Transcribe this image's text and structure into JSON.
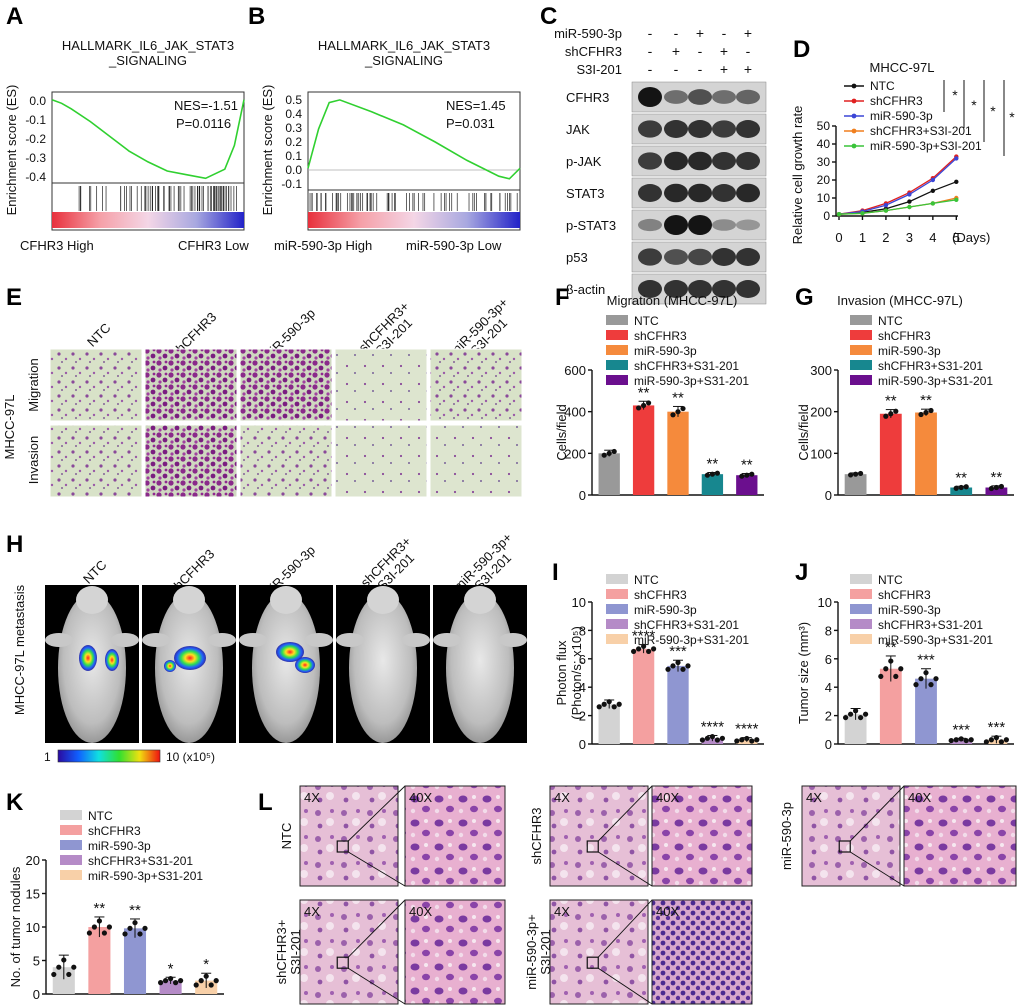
{
  "figure": {
    "panel_labels": [
      "A",
      "B",
      "C",
      "D",
      "E",
      "F",
      "G",
      "H",
      "I",
      "J",
      "K",
      "L"
    ]
  },
  "gsea": {
    "ylabel": "Enrichment score (ES)",
    "panels": [
      {
        "title1": "HALLMARK_IL6_JAK_STAT3",
        "title2": "_SIGNALING",
        "nes": "NES=-1.51",
        "p": "P=0.0116",
        "ticks": [
          "0.0",
          "-0.1",
          "-0.2",
          "-0.3",
          "-0.4"
        ],
        "left": "CFHR3 High",
        "right": "CFHR3 Low"
      },
      {
        "title1": "HALLMARK_IL6_JAK_STAT3",
        "title2": "_SIGNALING",
        "nes": "NES=1.45",
        "p": "P=0.031",
        "ticks": [
          "0.5",
          "0.4",
          "0.3",
          "0.2",
          "0.1",
          "0.0",
          "-0.1"
        ],
        "left": "miR-590-3p High",
        "right": "miR-590-3p Low"
      }
    ]
  },
  "western": {
    "header_rows": [
      {
        "name": "miR-590-3p",
        "marks": [
          "-",
          "-",
          "+",
          "-",
          "+"
        ]
      },
      {
        "name": "shCFHR3",
        "marks": [
          "-",
          "+",
          "-",
          "+",
          "-"
        ]
      },
      {
        "name": "S3I-201",
        "marks": [
          "-",
          "-",
          "-",
          "+",
          "+"
        ]
      }
    ],
    "proteins": [
      "CFHR3",
      "JAK",
      "p-JAK",
      "STAT3",
      "p-STAT3",
      "p53",
      "β-actin"
    ]
  },
  "growth": {
    "title": "MHCC-97L",
    "ylabel": "Relative cell growth rate",
    "xlabel": "(Days)",
    "sig": [
      "*",
      "*",
      "*",
      "*"
    ],
    "legend": [
      "NTC",
      "shCFHR3",
      "miR-590-3p",
      "shCFHR3+S3I-201",
      "miR-590-3p+S3I-201"
    ]
  },
  "transwell": {
    "columns": [
      "NTC",
      "shCFHR3",
      "miR-590-3p",
      "shCFHR3+\nS3I-201",
      "miR-590-3p+\nS3I-201"
    ],
    "cell_line": "MHCC-97L",
    "rows": [
      "Migration",
      "Invasion"
    ]
  },
  "metastasis": {
    "columns": [
      "NTC",
      "shCFHR3",
      "miR-590-3p",
      "shCFHR3+\nS3I-201",
      "miR-590-3p+\nS3I-201"
    ],
    "side_label": "MHCC-97L metastasis",
    "scale_min": "1",
    "scale_max": "10 (x10⁵)"
  },
  "he": {
    "mag_low": "4X",
    "mag_high": "40X",
    "labels": [
      "NTC",
      "shCFHR3",
      "miR-590-3p",
      "shCFHR3+\nS3I-201",
      "miR-590-3p+\nS3I-201"
    ]
  },
  "colors": {
    "dark": [
      "#999999",
      "#ee3c3c",
      "#f58a3c",
      "#17878f",
      "#6b0f8e"
    ],
    "light": [
      "#d3d3d3",
      "#f4a0a0",
      "#8f96d1",
      "#b58bc7",
      "#f8d0a8"
    ],
    "growth": [
      "#111111",
      "#e02020",
      "#3b46d6",
      "#f07f1e",
      "#3ac43a"
    ]
  },
  "chart_data": [
    {
      "panel": "A",
      "type": "line",
      "title": "HALLMARK_IL6_JAK_STAT3_SIGNALING",
      "ylabel": "Enrichment score (ES)",
      "ylim": [
        -0.45,
        0.02
      ],
      "x": [
        0,
        0.05,
        0.1,
        0.2,
        0.3,
        0.4,
        0.5,
        0.6,
        0.7,
        0.8,
        0.9,
        0.95,
        1.0
      ],
      "y": [
        0,
        -0.02,
        -0.05,
        -0.12,
        -0.2,
        -0.28,
        -0.34,
        -0.39,
        -0.41,
        -0.43,
        -0.38,
        -0.25,
        0
      ]
    },
    {
      "panel": "B",
      "type": "line",
      "title": "HALLMARK_IL6_JAK_STAT3_SIGNALING",
      "ylabel": "Enrichment score (ES)",
      "ylim": [
        -0.15,
        0.55
      ],
      "x": [
        0,
        0.05,
        0.1,
        0.15,
        0.3,
        0.45,
        0.6,
        0.75,
        0.9,
        0.95,
        1.0
      ],
      "y": [
        0,
        0.3,
        0.5,
        0.52,
        0.43,
        0.33,
        0.2,
        0.06,
        -0.06,
        -0.08,
        0.0
      ]
    },
    {
      "panel": "D",
      "type": "line",
      "title": "MHCC-97L",
      "xlabel": "(Days)",
      "ylabel": "Relative cell growth rate",
      "ylim": [
        0,
        50
      ],
      "x": [
        0,
        1,
        2,
        3,
        4,
        5
      ],
      "series": [
        {
          "name": "NTC",
          "values": [
            1,
            2,
            4,
            8,
            14,
            19
          ]
        },
        {
          "name": "shCFHR3",
          "values": [
            1,
            3,
            7,
            13,
            21,
            33
          ]
        },
        {
          "name": "miR-590-3p",
          "values": [
            1,
            2.5,
            6,
            12,
            20,
            32
          ]
        },
        {
          "name": "shCFHR3+S3I-201",
          "values": [
            1,
            1.5,
            3,
            5,
            7,
            10
          ]
        },
        {
          "name": "miR-590-3p+S3I-201",
          "values": [
            1,
            1.5,
            3,
            5,
            7,
            9
          ]
        }
      ]
    },
    {
      "panel": "F",
      "type": "bar",
      "title": "Migration (MHCC-97L)",
      "ylabel": "Cells/field",
      "ylim": [
        0,
        600
      ],
      "ticks": [
        0,
        200,
        400,
        600
      ],
      "categories": [
        "NTC",
        "shCFHR3",
        "miR-590-3p",
        "shCFHR3+S31-201",
        "miR-590-3p+S31-201"
      ],
      "values": [
        200,
        430,
        400,
        100,
        95
      ],
      "errors": [
        15,
        20,
        25,
        8,
        8
      ],
      "stars": [
        "",
        "**",
        "**",
        "**",
        "**"
      ]
    },
    {
      "panel": "G",
      "type": "bar",
      "title": "Invasion (MHCC-97L)",
      "ylabel": "Cells/field",
      "ylim": [
        0,
        300
      ],
      "ticks": [
        0,
        100,
        200,
        300
      ],
      "categories": [
        "NTC",
        "shCFHR3",
        "miR-590-3p",
        "shCFHR3+S31-201",
        "miR-590-3p+S31-201"
      ],
      "values": [
        50,
        195,
        198,
        18,
        18
      ],
      "errors": [
        3,
        10,
        8,
        3,
        4
      ],
      "stars": [
        "",
        "**",
        "**",
        "**",
        "**"
      ]
    },
    {
      "panel": "I",
      "type": "bar",
      "ylabel": "Photon flux (Photon/s; x10⁵)",
      "ylim": [
        0,
        10
      ],
      "ticks": [
        0,
        2,
        4,
        6,
        8,
        10
      ],
      "categories": [
        "NTC",
        "shCFHR3",
        "miR-590-3p",
        "shCFHR3+S31-201",
        "miR-590-3p+S31-201"
      ],
      "values": [
        2.8,
        6.7,
        5.5,
        0.4,
        0.3
      ],
      "errors": [
        0.3,
        0.3,
        0.4,
        0.2,
        0.15
      ],
      "stars": [
        "",
        "****",
        "***",
        "****",
        "****"
      ]
    },
    {
      "panel": "J",
      "type": "bar",
      "ylabel": "Tumor size (mm³)",
      "ylim": [
        0,
        10
      ],
      "ticks": [
        0,
        2,
        4,
        6,
        8,
        10
      ],
      "categories": [
        "NTC",
        "shCFHR3",
        "miR-590-3p",
        "shCFHR3+S31-201",
        "miR-590-3p+S31-201"
      ],
      "values": [
        2.1,
        5.3,
        4.6,
        0.3,
        0.3
      ],
      "errors": [
        0.4,
        0.9,
        0.7,
        0.1,
        0.25
      ],
      "stars": [
        "",
        "**",
        "***",
        "***",
        "***"
      ]
    },
    {
      "panel": "K",
      "type": "bar",
      "ylabel": "No. of tumor nodules",
      "ylim": [
        0,
        20
      ],
      "ticks": [
        0,
        5,
        10,
        15,
        20
      ],
      "categories": [
        "NTC",
        "shCFHR3",
        "miR-590-3p",
        "shCFHR3+S31-201",
        "miR-590-3p+S31-201"
      ],
      "values": [
        4,
        10,
        9.8,
        2,
        2
      ],
      "errors": [
        1.8,
        1.5,
        1.4,
        0.5,
        1.1
      ],
      "stars": [
        "",
        "**",
        "**",
        "*",
        "*"
      ]
    }
  ]
}
